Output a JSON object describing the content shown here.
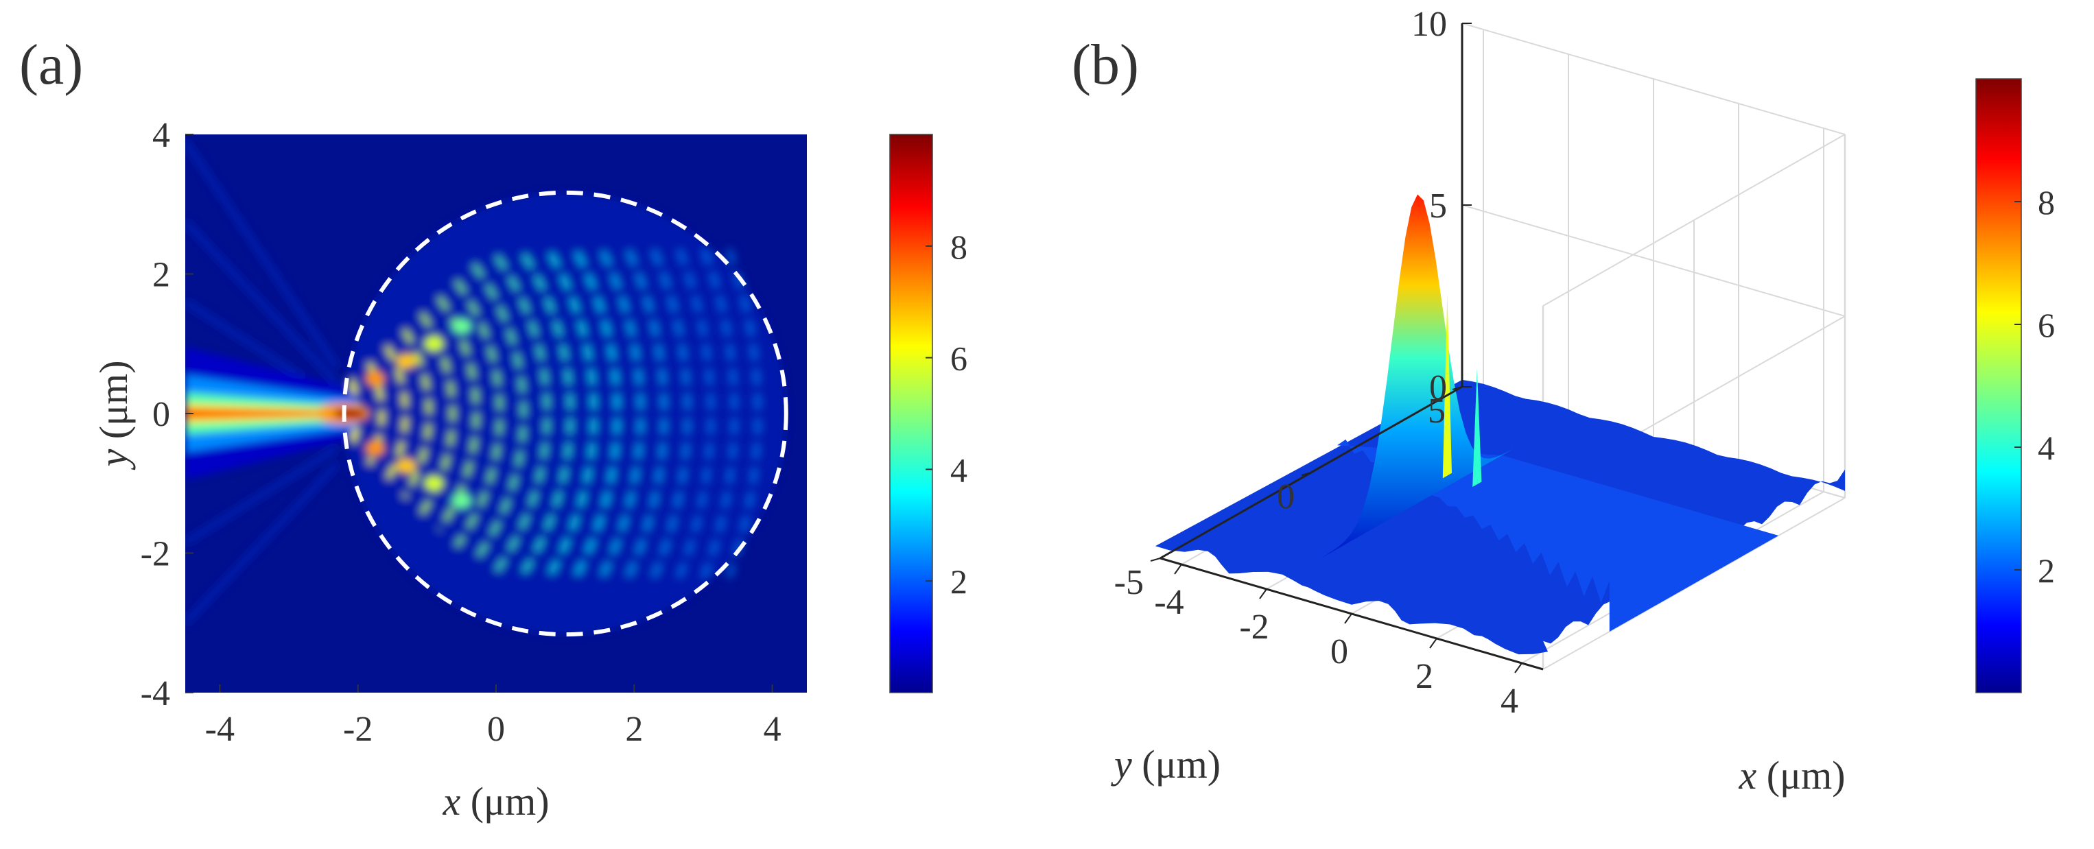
{
  "panels": {
    "a": {
      "label": "(a)"
    },
    "b": {
      "label": "(b)"
    }
  },
  "chart_data": [
    {
      "type": "heatmap",
      "panel": "a",
      "title": "",
      "xlabel_var": "x",
      "xlabel_unit": "(μm)",
      "ylabel_var": "y",
      "ylabel_unit": "(μm)",
      "xlim": [
        -4.5,
        4.5
      ],
      "ylim": [
        -4,
        4
      ],
      "xticks": [
        -4,
        -2,
        0,
        2,
        4
      ],
      "yticks": [
        -4,
        -2,
        0,
        2,
        4
      ],
      "colorbar": {
        "range": [
          0,
          10
        ],
        "ticks": [
          2,
          4,
          6,
          8
        ],
        "colormap": "jet"
      },
      "annotations": [
        {
          "type": "dashed-circle",
          "center": [
            1.0,
            0.0
          ],
          "radius": 3.2,
          "color": "#ffffff"
        }
      ],
      "features": {
        "input_beam": {
          "x_range": [
            -4.5,
            -2.0
          ],
          "y": 0,
          "peak": 9.0
        },
        "focus": {
          "x": -2.0,
          "y": 0.0,
          "peak": 9.6
        },
        "interference_lobes": {
          "x_range": [
            -2.0,
            4.2
          ],
          "fringe_period": 0.34
        }
      }
    },
    {
      "type": "surface3d",
      "panel": "b",
      "title": "",
      "xlabel_var": "x",
      "xlabel_unit": "(μm)",
      "ylabel_var": "y",
      "ylabel_unit": "(μm)",
      "xlim": [
        -4.5,
        4.5
      ],
      "ylim": [
        -5,
        5
      ],
      "zlim": [
        0,
        10
      ],
      "xticks": [
        -4,
        -2,
        0,
        2,
        4
      ],
      "yticks": [
        -5,
        0,
        5
      ],
      "zticks": [
        0,
        5,
        10
      ],
      "colorbar": {
        "range": [
          0,
          10
        ],
        "ticks": [
          2,
          4,
          6,
          8
        ],
        "colormap": "jet"
      },
      "peak": {
        "x": -2.0,
        "y": 0.0,
        "z": 8.5
      },
      "secondary_peaks": [
        {
          "x": -1.3,
          "y": 0.0,
          "z": 6.0
        },
        {
          "x": -0.6,
          "y": 0.0,
          "z": 4.2
        }
      ]
    }
  ]
}
